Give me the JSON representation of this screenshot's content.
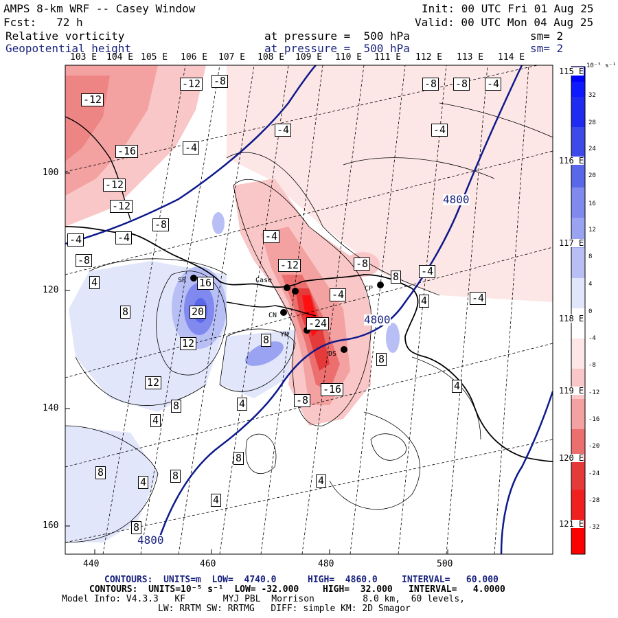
{
  "header": {
    "title": "AMPS 8-km WRF -- Casey Window",
    "init": "Init: 00 UTC Fri 01 Aug 25",
    "fcst": "Fcst:   72 h",
    "valid": "Valid: 00 UTC Mon 04 Aug 25",
    "field1_name": "Relative vorticity",
    "field1_pressure": "at pressure =  500 hPa",
    "field1_sm": "sm= 2",
    "field2_name": "Geopotential height",
    "field2_pressure": "at pressure =  500 hPa",
    "field2_sm": "sm= 2"
  },
  "map": {
    "longitude_labels": [
      "103 E",
      "104 E",
      "105 E",
      "106 E",
      "107 E",
      "108 E",
      "109 E",
      "110 E",
      "111 E",
      "112 E",
      "113 E",
      "114 E"
    ],
    "right_lon_labels": [
      "115 E",
      "116 E",
      "117 E",
      "118 E",
      "119 E",
      "120 E",
      "121 E"
    ],
    "y_axis_ticks": [
      "100",
      "120",
      "140",
      "160"
    ],
    "x_axis_ticks": [
      "440",
      "460",
      "480",
      "500"
    ],
    "stations": [
      "SR",
      "Case",
      "CP",
      "CN",
      "YN",
      "DS"
    ],
    "height_contour_labels": [
      "4800",
      "4800",
      "4800"
    ],
    "vorticity_labels": [
      "-12",
      "-8",
      "-12",
      "-4",
      "-16",
      "-4",
      "-12",
      "-12",
      "-8",
      "-4",
      "-4",
      "-8",
      "-4",
      "-8",
      "-12",
      "-8",
      "-8",
      "-4",
      "-4",
      "4",
      "16",
      "20",
      "12",
      "8",
      "-24",
      "-16",
      "-8",
      "8",
      "4",
      "8",
      "12",
      "8",
      "4",
      "8",
      "4",
      "8",
      "8",
      "4",
      "4",
      "8",
      "4",
      "-4",
      "4",
      "8",
      "-4",
      "-4"
    ],
    "colors": {
      "positive_max": "#0000ff",
      "negative_max": "#ff0000",
      "height_contour": "#0d1a8c"
    }
  },
  "colorbar": {
    "unit": "10⁻⁵ s⁻¹",
    "labels": [
      "32",
      "28",
      "24",
      "20",
      "16",
      "12",
      "8",
      "4",
      "0",
      "-4",
      "-8",
      "-12",
      "-16",
      "-20",
      "-24",
      "-28",
      "-32"
    ]
  },
  "footer": {
    "line1_label": "CONTOURS:  UNITS=m  LOW=  4740.0",
    "line1_high": "HIGH=  4860.0",
    "line1_interval": "INTERVAL=   60.000",
    "line2_label": "CONTOURS:  UNITS=10⁻⁵ s⁻¹  LOW= -32.000",
    "line2_high": "HIGH=  32.000",
    "line2_interval": "INTERVAL=   4.0000",
    "line3": "Model Info: V4.3.3   KF       MYJ PBL  Morrison         8.0 km,  60 levels,",
    "line4": "LW: RRTM SW: RRTMG   DIFF: simple KM: 2D Smagor"
  }
}
